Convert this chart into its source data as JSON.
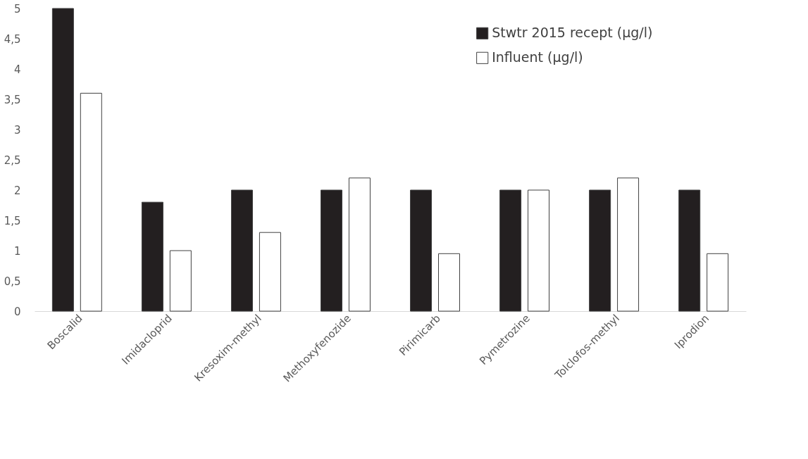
{
  "chart_data": {
    "type": "bar",
    "categories": [
      "Boscalid",
      "Imidacloprid",
      "Kresoxim-methyl",
      "Methoxyfenozide",
      "Pirimicarb",
      "Pymetrozine",
      "Tolclofos-methyl",
      "Iprodion"
    ],
    "series": [
      {
        "name": "Stwtr 2015 recept (µg/l)",
        "color": "#231f20",
        "values": [
          5,
          1.8,
          2,
          2,
          2,
          2,
          2,
          2
        ]
      },
      {
        "name": "Influent (µg/l)",
        "color": "#ffffff",
        "values": [
          3.6,
          1,
          1.3,
          2.2,
          0.95,
          2,
          2.2,
          0.95
        ]
      }
    ],
    "ylim": [
      0,
      5
    ],
    "yticks": [
      0,
      {
        "value": 0.5,
        "label": "0,5"
      },
      1,
      {
        "value": 1.5,
        "label": "1,5"
      },
      2,
      {
        "value": 2.5,
        "label": "2,5"
      },
      3,
      {
        "value": 3.5,
        "label": "3,5"
      },
      4,
      {
        "value": 4.5,
        "label": "4,5"
      },
      5
    ],
    "grid": false,
    "legend": "top right"
  }
}
